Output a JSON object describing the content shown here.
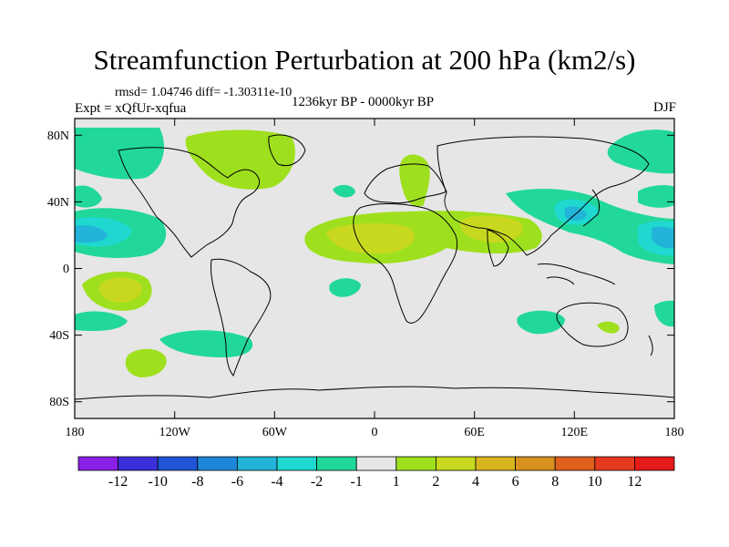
{
  "title": "Streamfunction Perturbation at 200 hPa (km2/s)",
  "stats": "rmsd= 1.04746 diff= -1.30311e-10",
  "experiment": "Expt = xQfUr-xqfua",
  "period": "1236kyr BP - 0000kyr BP",
  "season": "DJF",
  "axes": {
    "y_ticks": [
      "80N",
      "40N",
      "0",
      "40S",
      "80S"
    ],
    "x_ticks": [
      "180",
      "120W",
      "60W",
      "0",
      "60E",
      "120E",
      "180"
    ]
  },
  "legend": {
    "labels": [
      "-12",
      "-10",
      "-8",
      "-6",
      "-4",
      "-2",
      "-1",
      "1",
      "2",
      "4",
      "6",
      "8",
      "10",
      "12"
    ],
    "colors": [
      "#8a1fe6",
      "#3a2fd8",
      "#1f55d6",
      "#1e86d8",
      "#22b4d8",
      "#1fd8d0",
      "#21d89a",
      "#e6e6e6",
      "#9fe01e",
      "#c8d81e",
      "#d8b41e",
      "#d8901e",
      "#e0601e",
      "#e63a1e",
      "#e61a1a"
    ]
  },
  "colors": {
    "ocean_land_base": "#e6e6e6",
    "coast": "#000000"
  }
}
